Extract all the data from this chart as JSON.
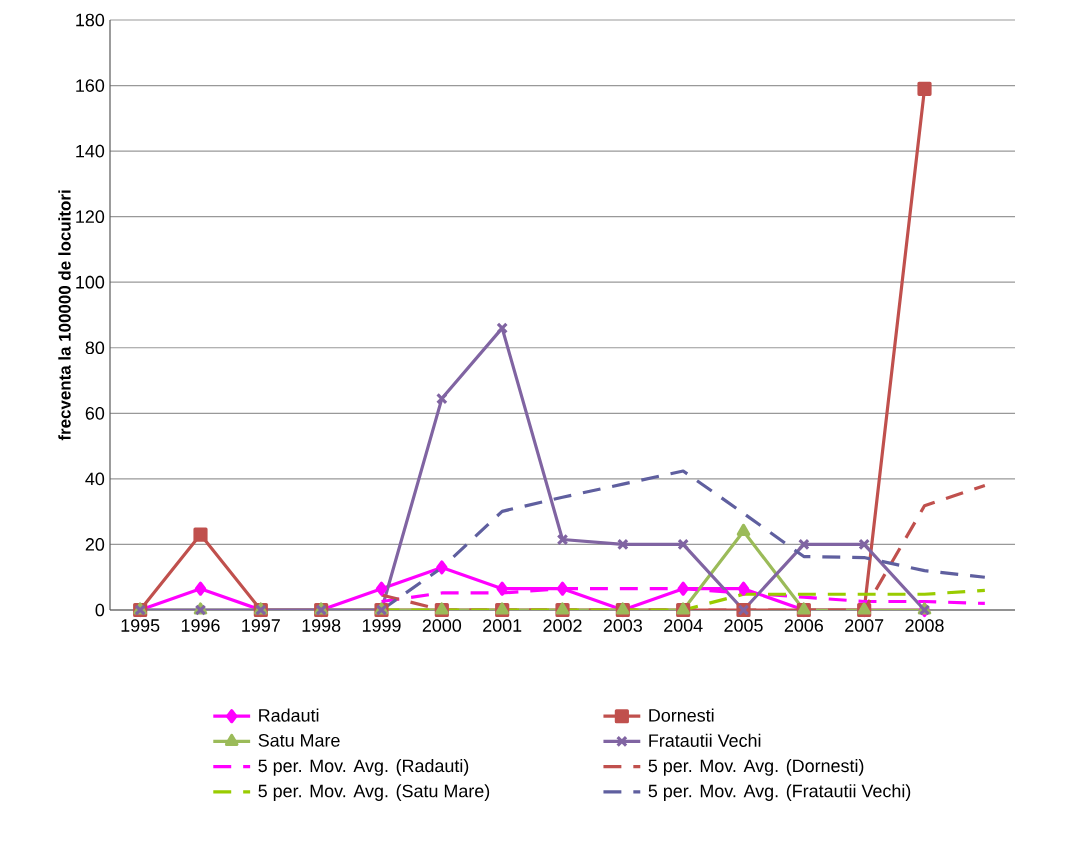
{
  "chart_data": {
    "type": "line",
    "ylabel": "frecventa la 100000 de locuitori",
    "categories": [
      "1995",
      "1996",
      "1997",
      "1998",
      "1999",
      "2000",
      "2001",
      "2002",
      "2003",
      "2004",
      "2005",
      "2006",
      "2007",
      "2008",
      null
    ],
    "ylim": [
      0,
      180
    ],
    "yticks": [
      0,
      20,
      40,
      60,
      80,
      100,
      120,
      140,
      160,
      180
    ],
    "grid": "y",
    "legend": "bottom",
    "series": [
      {
        "name": "Radauti",
        "color": "#ff00ff",
        "marker": "diamond",
        "line_style": "solid",
        "values": [
          0,
          6.5,
          0,
          0,
          6.5,
          13,
          6.5,
          6.5,
          0,
          6.5,
          6.5,
          0,
          0,
          0,
          null
        ]
      },
      {
        "name": "Dornesti",
        "color": "#c0504d",
        "marker": "square",
        "line_style": "solid",
        "values": [
          0,
          23,
          0,
          0,
          0,
          0,
          0,
          0,
          0,
          0,
          0,
          0,
          0,
          159,
          null
        ]
      },
      {
        "name": "Satu Mare",
        "color": "#9bbb59",
        "marker": "triangle",
        "line_style": "solid",
        "values": [
          0,
          0,
          0,
          0,
          0,
          0,
          0,
          0,
          0,
          0,
          24,
          0,
          0,
          0,
          null
        ]
      },
      {
        "name": "Fratautii Vechi",
        "color": "#8064a2",
        "marker": "cross",
        "line_style": "solid",
        "values": [
          0,
          0,
          0,
          0,
          0,
          64.5,
          86,
          21.5,
          20,
          20,
          0,
          20,
          20,
          0,
          null
        ]
      },
      {
        "name": "5 per. Mov. Avg. (Radauti)",
        "color": "#ff00ff",
        "marker": "none",
        "line_style": "dashed",
        "values": [
          null,
          null,
          null,
          null,
          2.6,
          5.2,
          5.2,
          6.5,
          6.5,
          6.5,
          5.2,
          3.9,
          2.6,
          2.6,
          2
        ]
      },
      {
        "name": "5 per. Mov. Avg. (Dornesti)",
        "color": "#c0504d",
        "marker": "none",
        "line_style": "dashed",
        "values": [
          null,
          null,
          null,
          null,
          4.6,
          0,
          0,
          0,
          0,
          0,
          0,
          0,
          0,
          31.8,
          38
        ]
      },
      {
        "name": "5 per. Mov. Avg. (Satu Mare)",
        "color": "#99cc00",
        "marker": "none",
        "line_style": "dashed",
        "values": [
          null,
          null,
          null,
          null,
          0,
          0,
          0,
          0,
          0,
          0,
          4.8,
          4.8,
          4.8,
          4.8,
          6
        ]
      },
      {
        "name": "5 per. Mov. Avg. (Fratautii Vechi)",
        "color": "#5f5f9f",
        "marker": "none",
        "line_style": "dashed",
        "values": [
          null,
          null,
          null,
          null,
          0,
          12.9,
          30.1,
          34.4,
          38.4,
          42.4,
          29.5,
          16.3,
          16,
          12,
          10
        ]
      }
    ]
  }
}
